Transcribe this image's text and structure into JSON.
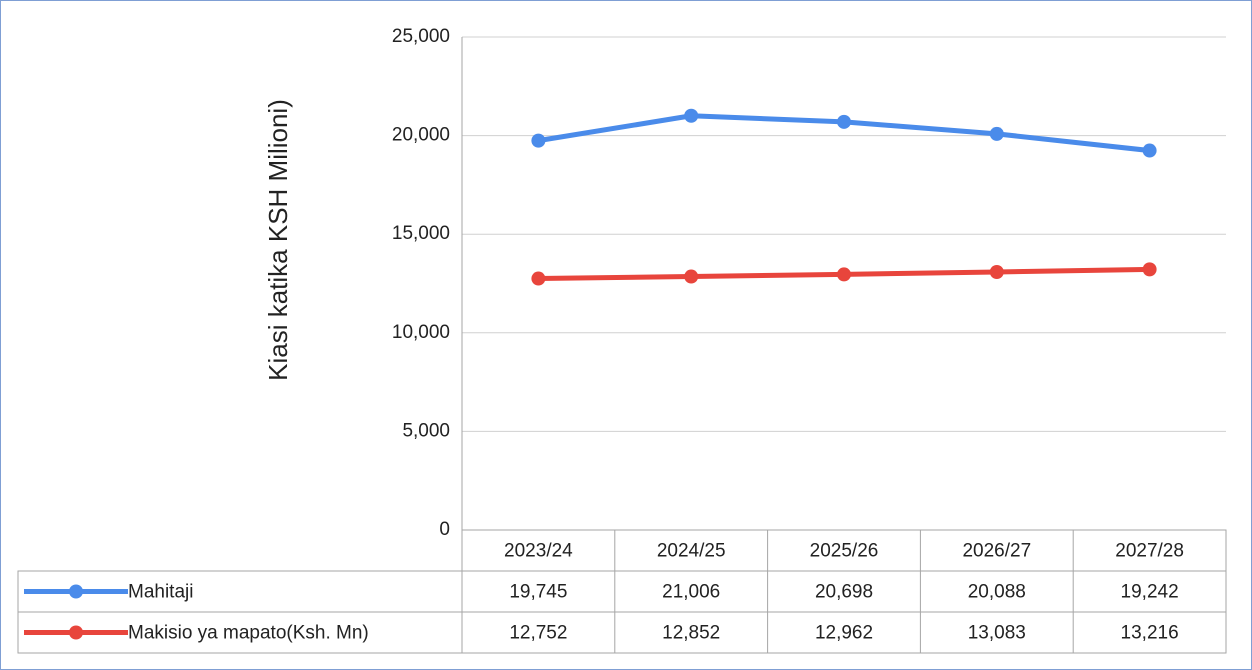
{
  "chart_data": {
    "type": "line",
    "y_axis_label": "Kiasi katika KSH Milioni)",
    "categories": [
      "2023/24",
      "2024/25",
      "2025/26",
      "2026/27",
      "2027/28"
    ],
    "series": [
      {
        "name": "Mahitaji",
        "color": "#4a8bea",
        "values": [
          19745,
          21006,
          20698,
          20088,
          19242
        ],
        "value_labels": [
          "19,745",
          "21,006",
          "20,698",
          "20,088",
          "19,242"
        ]
      },
      {
        "name": "Makisio ya mapato(Ksh. Mn)",
        "color": "#e8453c",
        "values": [
          12752,
          12852,
          12962,
          13083,
          13216
        ],
        "value_labels": [
          "12,752",
          "12,852",
          "12,962",
          "13,083",
          "13,216"
        ]
      }
    ],
    "ylim": [
      0,
      25000
    ],
    "yticks": [
      0,
      {
        "value": 5000,
        "label": "5,000"
      },
      {
        "value": 10000,
        "label": "10,000"
      },
      {
        "value": 15000,
        "label": "15,000"
      },
      {
        "value": 20000,
        "label": "20,000"
      },
      {
        "value": 25000,
        "label": "25,000"
      }
    ],
    "grid": true
  }
}
